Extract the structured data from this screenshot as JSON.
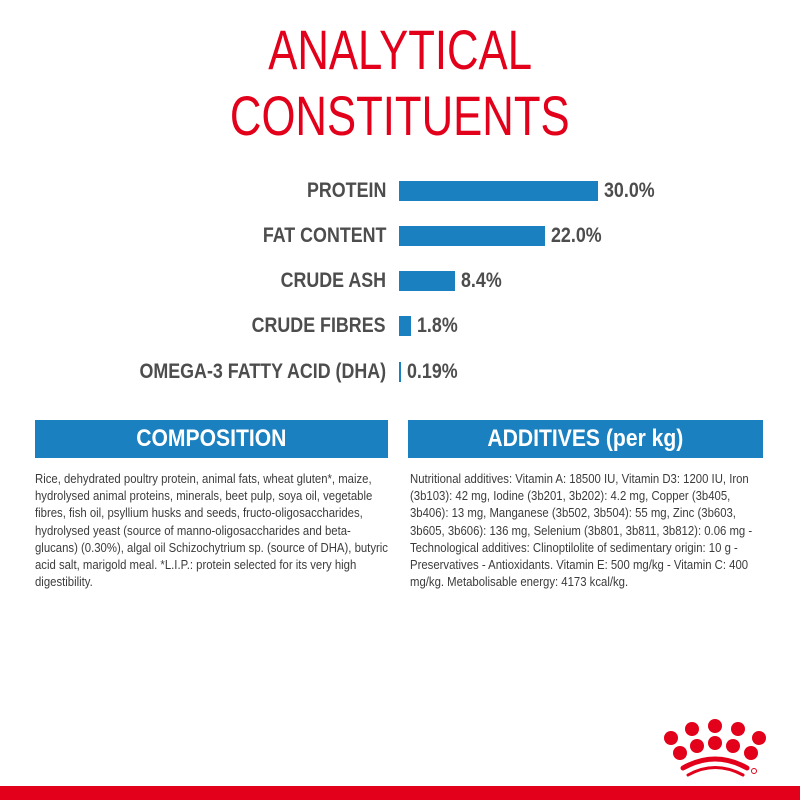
{
  "title_lines": [
    "ANALYTICAL",
    "CONSTITUENTS"
  ],
  "chart_data": {
    "type": "bar",
    "orientation": "horizontal",
    "categories": [
      "PROTEIN",
      "FAT CONTENT",
      "CRUDE ASH",
      "CRUDE FIBRES",
      "OMEGA-3 FATTY ACID (DHA)"
    ],
    "values": [
      30.0,
      22.0,
      8.4,
      1.8,
      0.19
    ],
    "value_labels": [
      "30.0%",
      "22.0%",
      "8.4%",
      "1.8%",
      "0.19%"
    ],
    "bar_color": "#1a80bf",
    "grid": false
  },
  "composition": {
    "heading": "COMPOSITION",
    "text": "Rice, dehydrated poultry protein, animal fats, wheat gluten*, maize, hydrolysed animal proteins, minerals, beet pulp, soya oil, vegetable fibres, fish oil, psyllium husks and seeds, fructo-oligosaccharides, hydrolysed yeast (source of manno-oligosaccharides and beta-glucans) (0.30%), algal oil Schizochytrium sp. (source of DHA), butyric acid salt, marigold meal. *L.I.P.: protein selected for its very high digestibility."
  },
  "additives": {
    "heading": "ADDITIVES (per kg)",
    "text": "Nutritional additives: Vitamin A: 18500 IU, Vitamin D3: 1200 IU, Iron (3b103): 42 mg, Iodine (3b201, 3b202): 4.2 mg, Copper (3b405, 3b406): 13 mg, Manganese (3b502, 3b504): 55 mg, Zinc (3b603, 3b605, 3b606): 136 mg, Selenium (3b801, 3b811, 3b812): 0.06 mg - Technological additives: Clinoptilolite of sedimentary origin: 10 g - Preservatives - Antioxidants. Vitamin E: 500 mg/kg - Vitamin C: 400 mg/kg. Metabolisable energy: 4173 kcal/kg."
  },
  "colors": {
    "brand_red": "#e2001a",
    "accent_blue": "#1a80bf",
    "text": "#4d4d4d"
  },
  "logo": "royal-canin-crown-logo"
}
